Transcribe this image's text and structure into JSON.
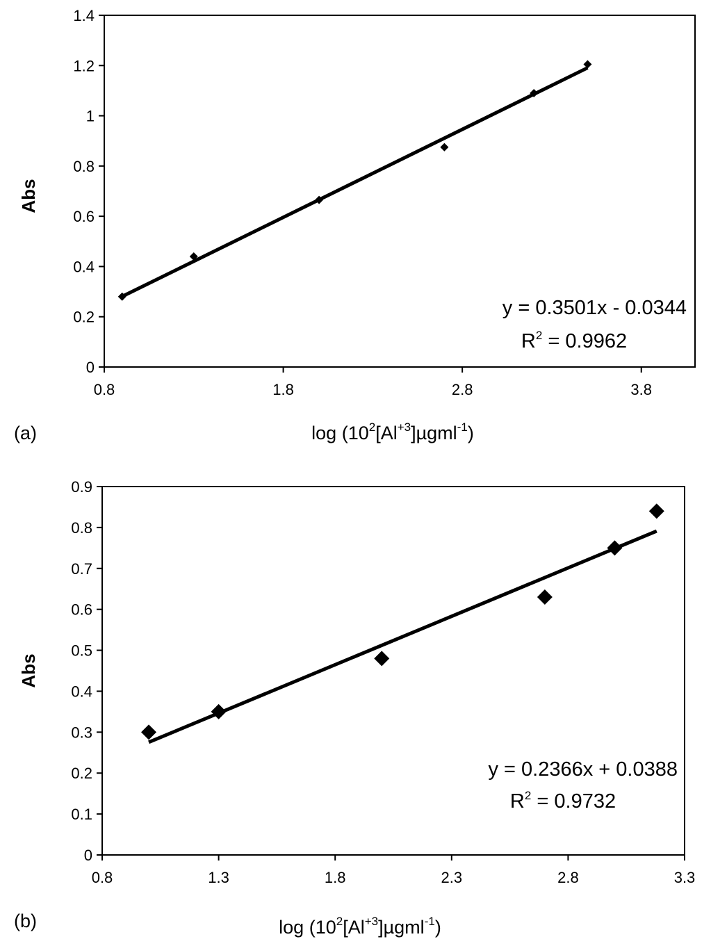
{
  "chart_data": [
    {
      "type": "scatter",
      "panel_label": "(a)",
      "ylabel": "Abs",
      "xlabel": {
        "pre": "log (10",
        "s1": "2",
        "mid": "[Al",
        "s2": "+3",
        "post": "]µgml",
        "s3": "-1",
        "end": ")"
      },
      "xlim": [
        0.8,
        4.1
      ],
      "ylim": [
        0,
        1.4
      ],
      "xticks": [
        "0.8",
        "1.8",
        "2.8",
        "3.8"
      ],
      "yticks": [
        "0",
        "0.2",
        "0.4",
        "0.6",
        "0.8",
        "1",
        "1.2",
        "1.4"
      ],
      "marker": "small-diamond",
      "series": [
        {
          "x": [
            0.9,
            1.3,
            2.0,
            2.7,
            3.2,
            3.5
          ],
          "y": [
            0.28,
            0.44,
            0.665,
            0.875,
            1.09,
            1.205
          ]
        }
      ],
      "trendline": {
        "slope": 0.3501,
        "intercept": -0.0344,
        "x_range": [
          0.9,
          3.5
        ]
      },
      "equation": "y = 0.3501x - 0.0344",
      "r2": {
        "label": "R",
        "sup": "2",
        "value": " = 0.9962"
      }
    },
    {
      "type": "scatter",
      "panel_label": "(b)",
      "ylabel": "Abs",
      "xlabel": {
        "pre": "log (10",
        "s1": "2",
        "mid": "[Al",
        "s2": "+3",
        "post": "]µgml",
        "s3": "-1",
        "end": ")"
      },
      "xlim": [
        0.8,
        3.3
      ],
      "ylim": [
        0,
        0.9
      ],
      "xticks": [
        "0.8",
        "1.3",
        "1.8",
        "2.3",
        "2.8",
        "3.3"
      ],
      "yticks": [
        "0",
        "0.1",
        "0.2",
        "0.3",
        "0.4",
        "0.5",
        "0.6",
        "0.7",
        "0.8",
        "0.9"
      ],
      "marker": "large-diamond",
      "series": [
        {
          "x": [
            1.0,
            1.3,
            2.0,
            2.7,
            3.0,
            3.18
          ],
          "y": [
            0.3,
            0.35,
            0.48,
            0.63,
            0.75,
            0.84
          ]
        }
      ],
      "trendline": {
        "slope": 0.2366,
        "intercept": 0.0388,
        "x_range": [
          1.0,
          3.18
        ]
      },
      "equation": "y = 0.2366x + 0.0388",
      "r2": {
        "label": "R",
        "sup": "2",
        "value": " = 0.9732"
      }
    }
  ]
}
